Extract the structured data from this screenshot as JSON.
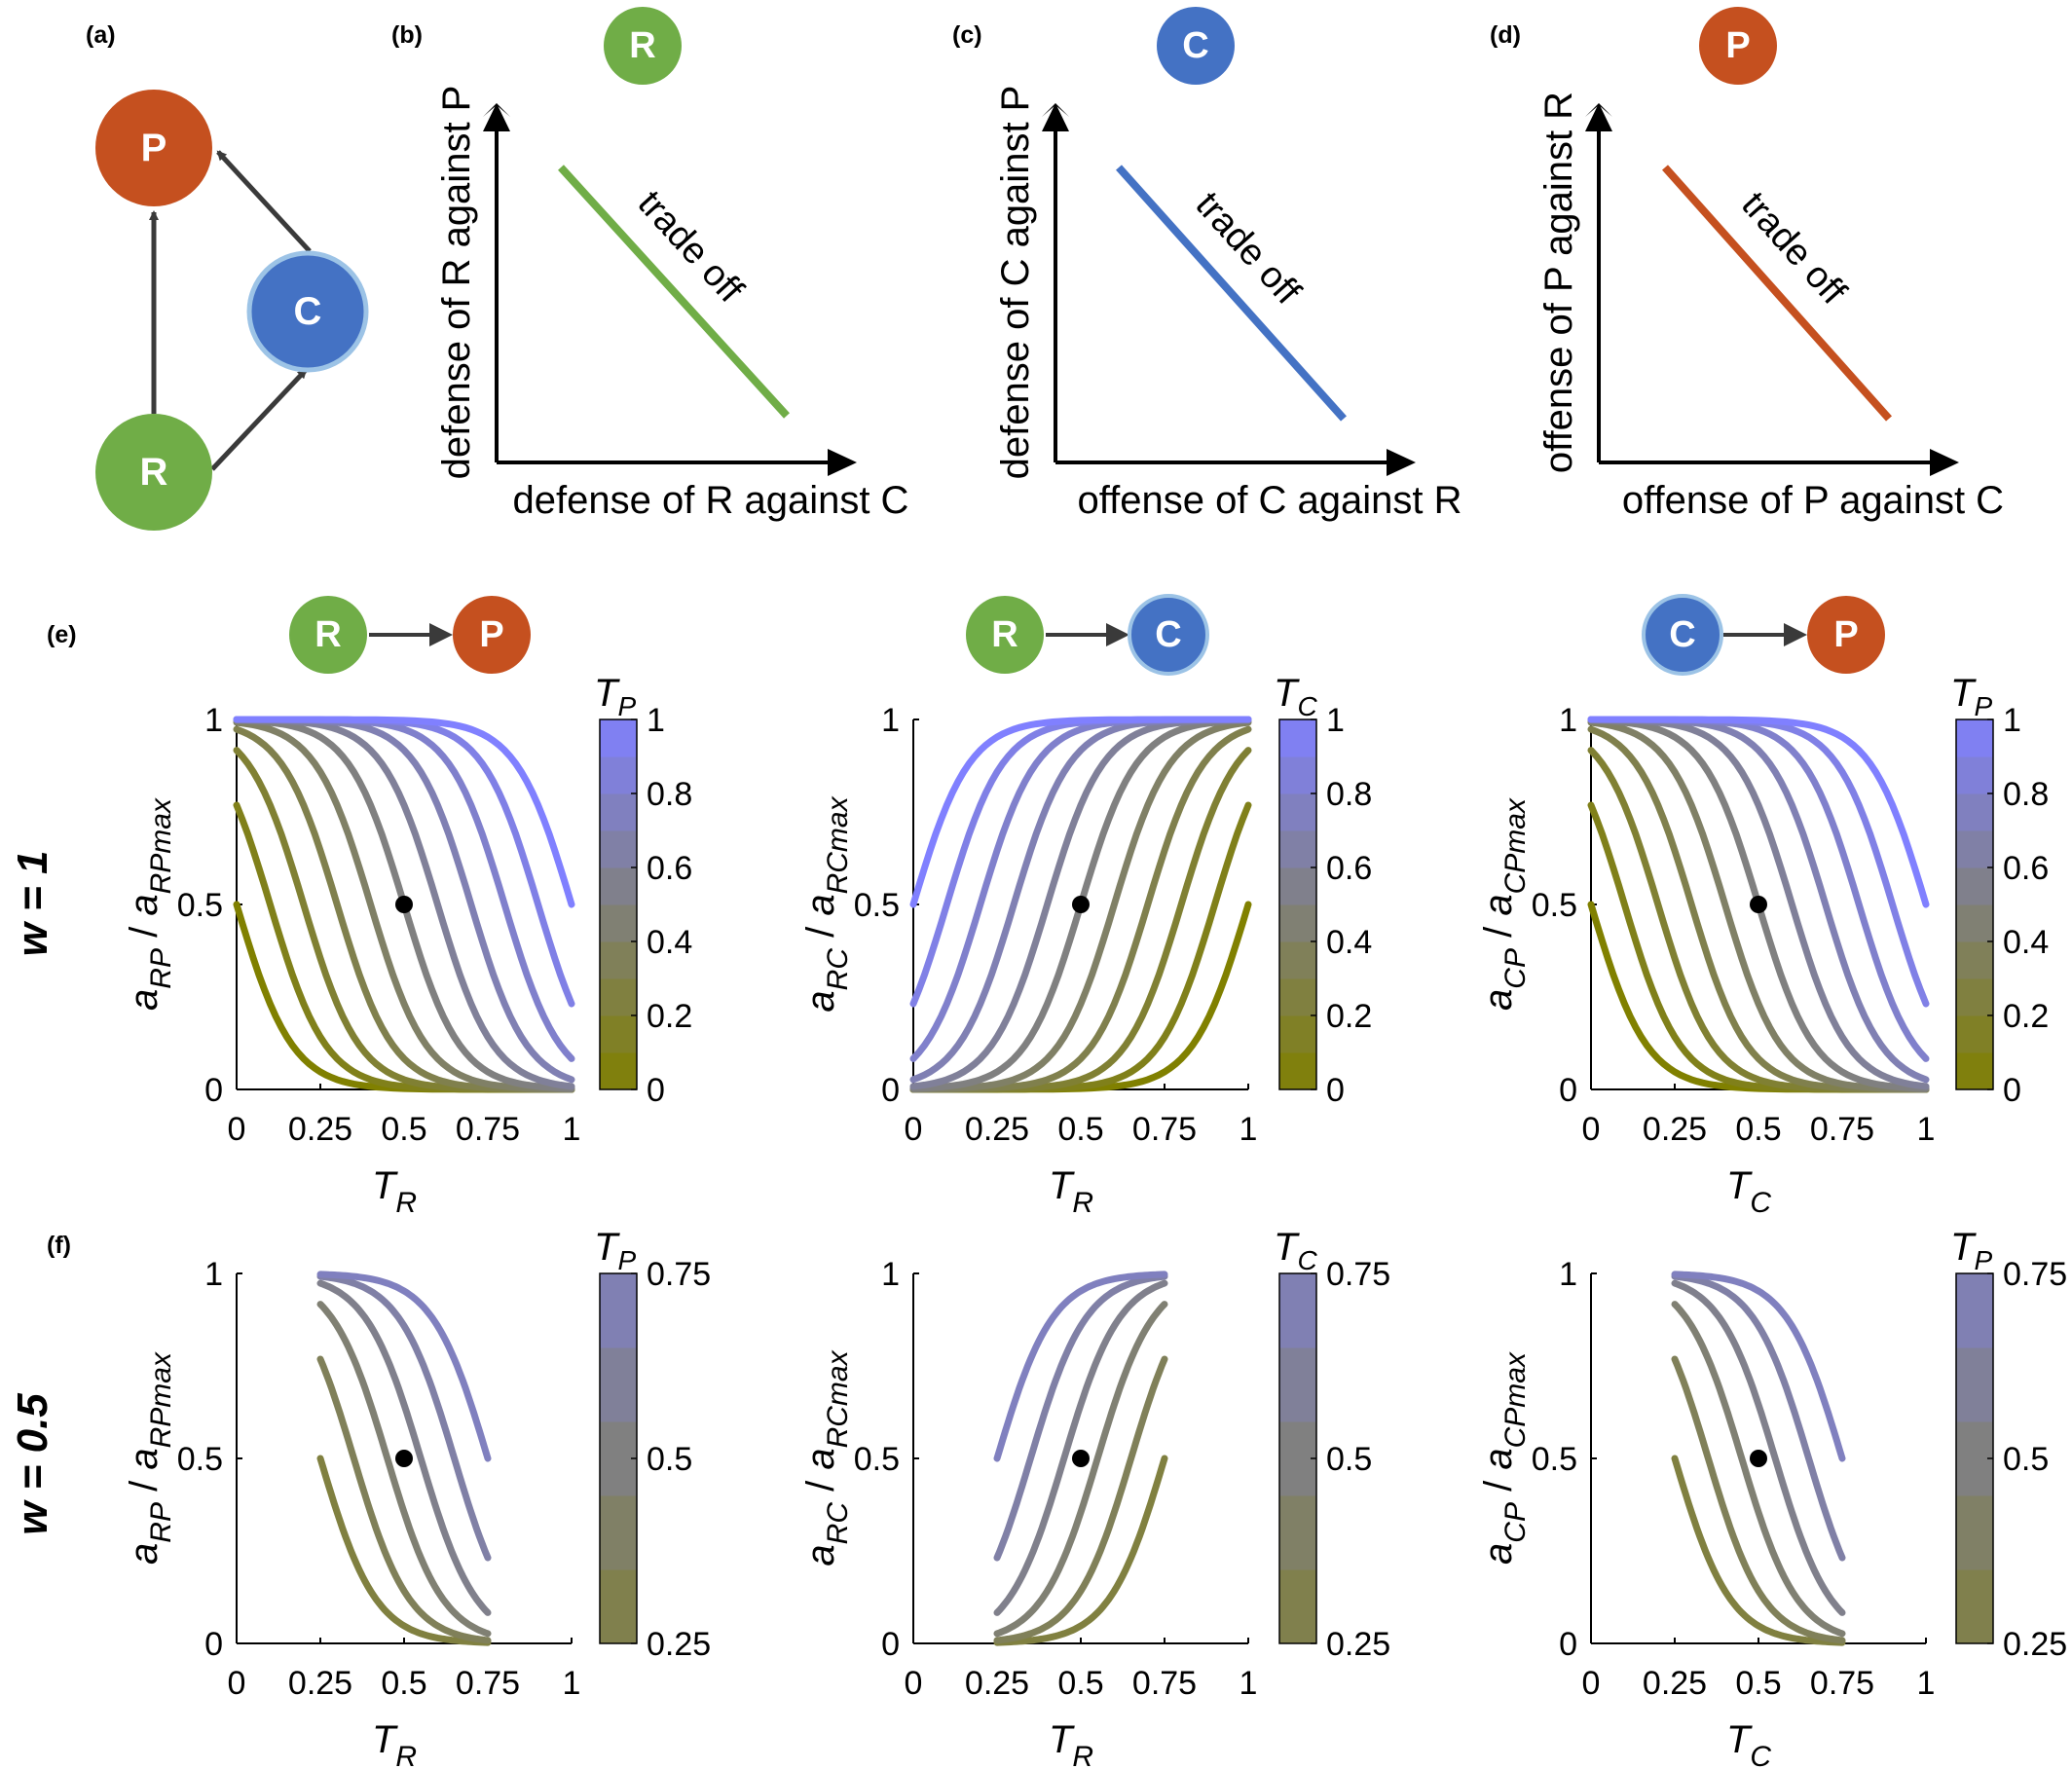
{
  "colors": {
    "R": "#70ad47",
    "C": "#4472c4",
    "P": "#c5501f",
    "arrow": "#3a3a3a",
    "gradient_low": "#808000",
    "gradient_high": "#8080ff"
  },
  "panel_labels": {
    "a": "(a)",
    "b": "(b)",
    "c": "(c)",
    "d": "(d)",
    "e": "(e)",
    "f": "(f)"
  },
  "network": {
    "nodes": {
      "R": "R",
      "C": "C",
      "P": "P"
    },
    "edges": [
      [
        "R",
        "P"
      ],
      [
        "R",
        "C"
      ],
      [
        "C",
        "P"
      ]
    ]
  },
  "tradeoffs": [
    {
      "node": "R",
      "ylabel": "defense of R against P",
      "xlabel": "defense of R against C",
      "annotation": "trade off"
    },
    {
      "node": "C",
      "ylabel": "defense of C against P",
      "xlabel": "offense of C against R",
      "annotation": "trade off"
    },
    {
      "node": "P",
      "ylabel": "offense of P against R",
      "xlabel": "offense of P against C",
      "annotation": "trade off"
    }
  ],
  "rows": [
    {
      "label": "w = 1"
    },
    {
      "label": "w = 0.5"
    }
  ],
  "chart_data": [
    {
      "type": "line",
      "row": "w = 1",
      "interaction": [
        "R",
        "P"
      ],
      "direction": "decreasing",
      "xlabel": "T",
      "xlabel_sub": "R",
      "ylabel": "a",
      "ylabel_sub": "RP",
      "ylabel_den": "a",
      "ylabel_den_sub": "RPmax",
      "colorbar_label": "T",
      "colorbar_sub": "P",
      "xlim": [
        0,
        1
      ],
      "ylim": [
        0,
        1
      ],
      "xticks": [
        "0",
        "0.25",
        "0.5",
        "0.75",
        "1"
      ],
      "yticks": [
        "0",
        "0.5",
        "1"
      ],
      "cbar_range": [
        0,
        1
      ],
      "cbar_ticks": [
        "0",
        "0.2",
        "0.4",
        "0.6",
        "0.8",
        "1"
      ],
      "series_params": [
        0,
        0.1,
        0.2,
        0.3,
        0.4,
        0.5,
        0.6,
        0.7,
        0.8,
        0.9,
        1
      ],
      "series_x_range": [
        0,
        1
      ],
      "marker": {
        "x": 0.5,
        "y": 0.5
      }
    },
    {
      "type": "line",
      "row": "w = 1",
      "interaction": [
        "R",
        "C"
      ],
      "direction": "increasing",
      "xlabel": "T",
      "xlabel_sub": "R",
      "ylabel": "a",
      "ylabel_sub": "RC",
      "ylabel_den": "a",
      "ylabel_den_sub": "RCmax",
      "colorbar_label": "T",
      "colorbar_sub": "C",
      "xlim": [
        0,
        1
      ],
      "ylim": [
        0,
        1
      ],
      "xticks": [
        "0",
        "0.25",
        "0.5",
        "0.75",
        "1"
      ],
      "yticks": [
        "0",
        "0.5",
        "1"
      ],
      "cbar_range": [
        0,
        1
      ],
      "cbar_ticks": [
        "0",
        "0.2",
        "0.4",
        "0.6",
        "0.8",
        "1"
      ],
      "series_params": [
        0,
        0.1,
        0.2,
        0.3,
        0.4,
        0.5,
        0.6,
        0.7,
        0.8,
        0.9,
        1
      ],
      "series_x_range": [
        0,
        1
      ],
      "marker": {
        "x": 0.5,
        "y": 0.5
      }
    },
    {
      "type": "line",
      "row": "w = 1",
      "interaction": [
        "C",
        "P"
      ],
      "direction": "decreasing",
      "xlabel": "T",
      "xlabel_sub": "C",
      "ylabel": "a",
      "ylabel_sub": "CP",
      "ylabel_den": "a",
      "ylabel_den_sub": "CPmax",
      "colorbar_label": "T",
      "colorbar_sub": "P",
      "xlim": [
        0,
        1
      ],
      "ylim": [
        0,
        1
      ],
      "xticks": [
        "0",
        "0.25",
        "0.5",
        "0.75",
        "1"
      ],
      "yticks": [
        "0",
        "0.5",
        "1"
      ],
      "cbar_range": [
        0,
        1
      ],
      "cbar_ticks": [
        "0",
        "0.2",
        "0.4",
        "0.6",
        "0.8",
        "1"
      ],
      "series_params": [
        0,
        0.1,
        0.2,
        0.3,
        0.4,
        0.5,
        0.6,
        0.7,
        0.8,
        0.9,
        1
      ],
      "series_x_range": [
        0,
        1
      ],
      "marker": {
        "x": 0.5,
        "y": 0.5
      }
    },
    {
      "type": "line",
      "row": "w = 0.5",
      "interaction": [
        "R",
        "P"
      ],
      "direction": "decreasing",
      "xlabel": "T",
      "xlabel_sub": "R",
      "ylabel": "a",
      "ylabel_sub": "RP",
      "ylabel_den": "a",
      "ylabel_den_sub": "RPmax",
      "colorbar_label": "T",
      "colorbar_sub": "P",
      "xlim": [
        0,
        1
      ],
      "ylim": [
        0,
        1
      ],
      "xticks": [
        "0",
        "0.25",
        "0.5",
        "0.75",
        "1"
      ],
      "yticks": [
        "0",
        "0.5",
        "1"
      ],
      "cbar_range": [
        0.25,
        0.75
      ],
      "cbar_ticks": [
        "0.25",
        "0.5",
        "0.75"
      ],
      "series_params": [
        0.25,
        0.35,
        0.45,
        0.55,
        0.65,
        0.75
      ],
      "series_x_range": [
        0.25,
        0.75
      ],
      "marker": {
        "x": 0.5,
        "y": 0.5
      }
    },
    {
      "type": "line",
      "row": "w = 0.5",
      "interaction": [
        "R",
        "C"
      ],
      "direction": "increasing",
      "xlabel": "T",
      "xlabel_sub": "R",
      "ylabel": "a",
      "ylabel_sub": "RC",
      "ylabel_den": "a",
      "ylabel_den_sub": "RCmax",
      "colorbar_label": "T",
      "colorbar_sub": "C",
      "xlim": [
        0,
        1
      ],
      "ylim": [
        0,
        1
      ],
      "xticks": [
        "0",
        "0.25",
        "0.5",
        "0.75",
        "1"
      ],
      "yticks": [
        "0",
        "0.5",
        "1"
      ],
      "cbar_range": [
        0.25,
        0.75
      ],
      "cbar_ticks": [
        "0.25",
        "0.5",
        "0.75"
      ],
      "series_params": [
        0.25,
        0.35,
        0.45,
        0.55,
        0.65,
        0.75
      ],
      "series_x_range": [
        0.25,
        0.75
      ],
      "marker": {
        "x": 0.5,
        "y": 0.5
      }
    },
    {
      "type": "line",
      "row": "w = 0.5",
      "interaction": [
        "C",
        "P"
      ],
      "direction": "decreasing",
      "xlabel": "T",
      "xlabel_sub": "C",
      "ylabel": "a",
      "ylabel_sub": "CP",
      "ylabel_den": "a",
      "ylabel_den_sub": "CPmax",
      "colorbar_label": "T",
      "colorbar_sub": "P",
      "xlim": [
        0,
        1
      ],
      "ylim": [
        0,
        1
      ],
      "xticks": [
        "0",
        "0.25",
        "0.5",
        "0.75",
        "1"
      ],
      "yticks": [
        "0",
        "0.5",
        "1"
      ],
      "cbar_range": [
        0.25,
        0.75
      ],
      "cbar_ticks": [
        "0.25",
        "0.5",
        "0.75"
      ],
      "series_params": [
        0.25,
        0.35,
        0.45,
        0.55,
        0.65,
        0.75
      ],
      "series_x_range": [
        0.25,
        0.75
      ],
      "marker": {
        "x": 0.5,
        "y": 0.5
      }
    }
  ]
}
